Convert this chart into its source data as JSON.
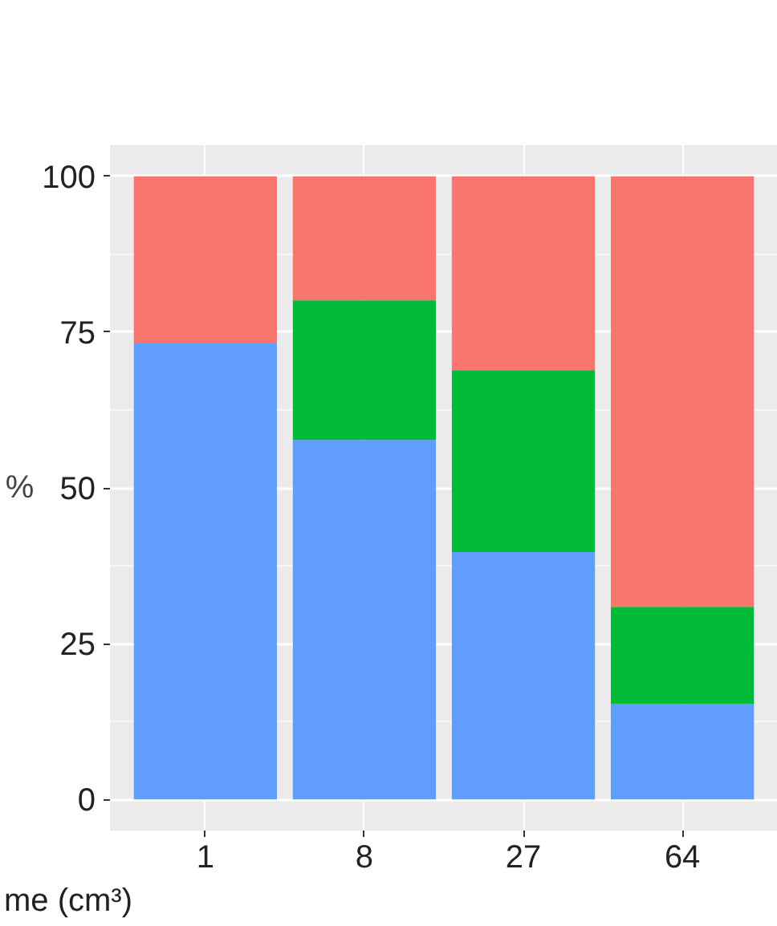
{
  "chart_data": {
    "type": "bar",
    "stacked": true,
    "xlabel": "me (cm³)",
    "ylabel": "%",
    "categories": [
      "1",
      "8",
      "27",
      "64"
    ],
    "series": [
      {
        "color": "#619cff",
        "values": [
          73.3,
          57.7,
          39.7,
          15.3
        ]
      },
      {
        "color": "#00ba38",
        "values": [
          0,
          22.4,
          29.2,
          15.6
        ]
      },
      {
        "color": "#f8766d",
        "values": [
          26.7,
          19.9,
          31.1,
          69.1
        ]
      }
    ],
    "ylim": [
      -5,
      105
    ],
    "yticks": [
      0,
      25,
      50,
      75,
      100
    ],
    "grid": true
  }
}
